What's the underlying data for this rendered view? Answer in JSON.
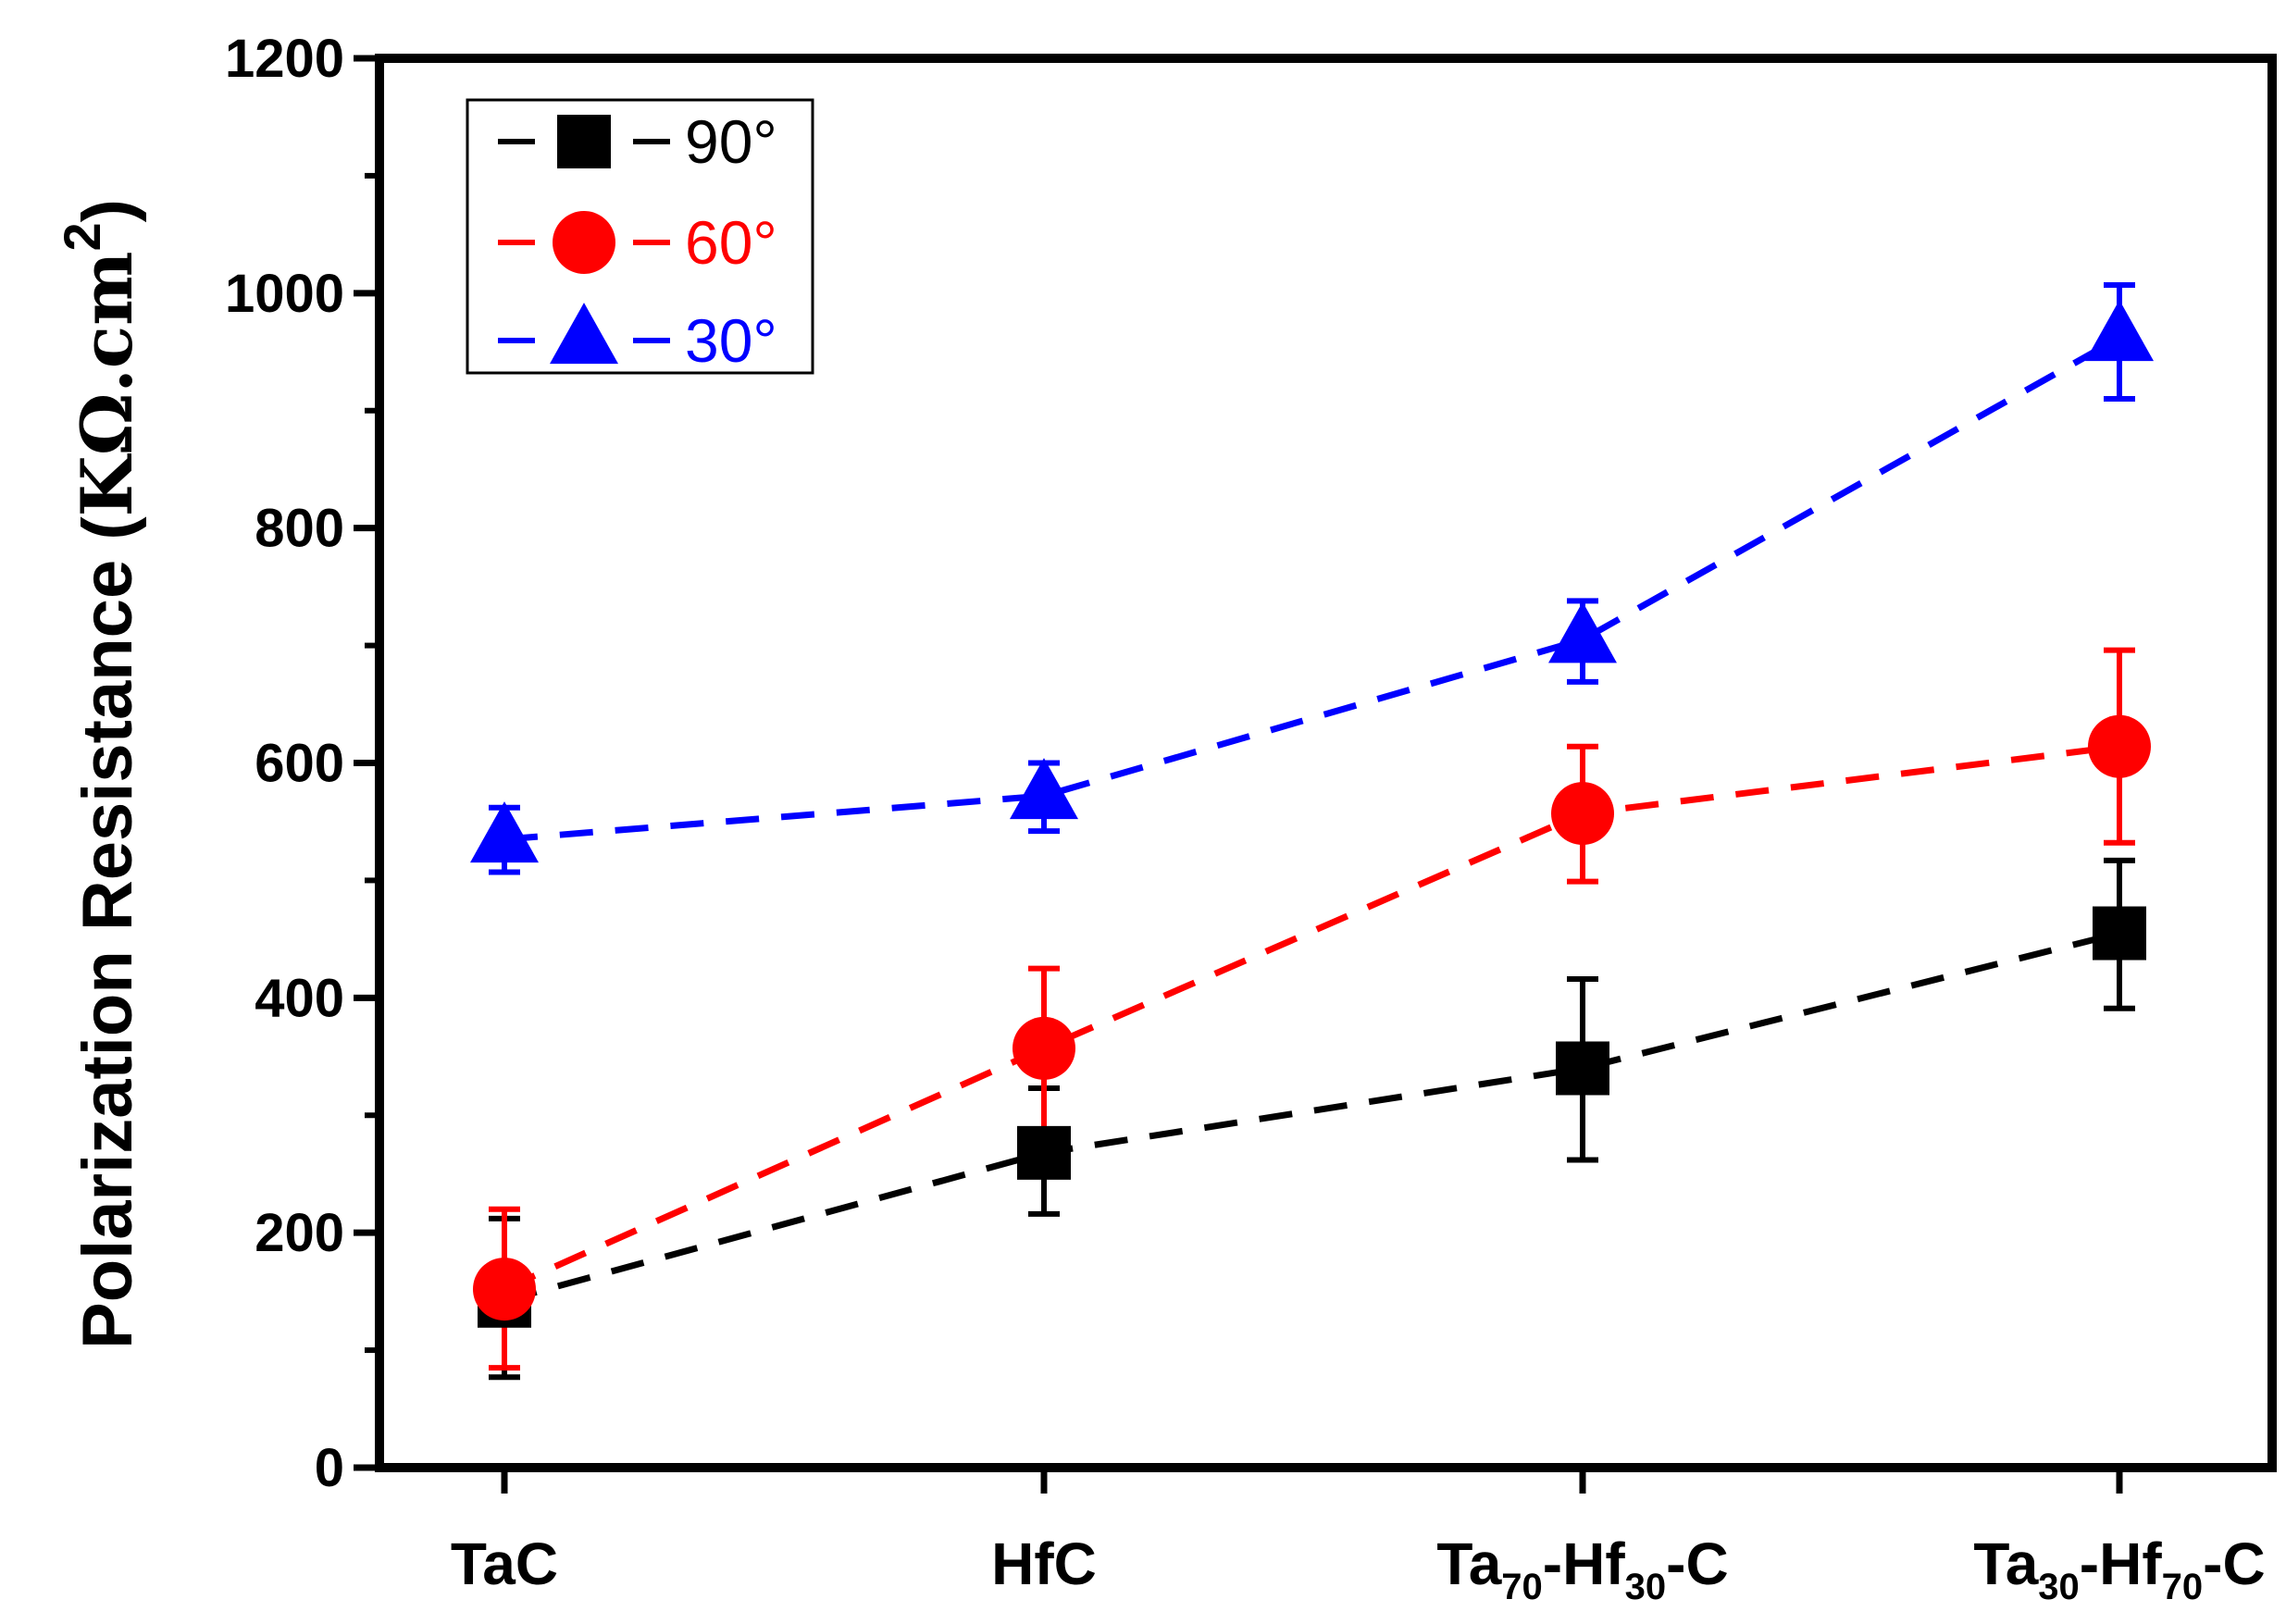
{
  "chart_data": {
    "type": "line",
    "title": "",
    "xlabel": "",
    "ylabel": {
      "main": "Polarization Resistance (",
      "unit": "KΩ.cm",
      "superscript": "2",
      "close": ")"
    },
    "ylim": [
      0,
      1200
    ],
    "yticks": [
      0,
      200,
      400,
      600,
      800,
      1000,
      1200
    ],
    "categories": [
      {
        "parts": [
          {
            "t": "TaC",
            "sub": false
          }
        ]
      },
      {
        "parts": [
          {
            "t": "HfC",
            "sub": false
          }
        ]
      },
      {
        "parts": [
          {
            "t": "Ta",
            "sub": false
          },
          {
            "t": "70",
            "sub": true
          },
          {
            "t": "-Hf",
            "sub": false
          },
          {
            "t": "30",
            "sub": true
          },
          {
            "t": "-C",
            "sub": false
          }
        ]
      },
      {
        "parts": [
          {
            "t": "Ta",
            "sub": false
          },
          {
            "t": "30",
            "sub": true
          },
          {
            "t": "-Hf",
            "sub": false
          },
          {
            "t": "70",
            "sub": true
          },
          {
            "t": "-C",
            "sub": false
          }
        ]
      }
    ],
    "series": [
      {
        "name": "90°",
        "color": "#000000",
        "marker": "square",
        "values": [
          142,
          268,
          340,
          455
        ],
        "error_low": [
          65,
          52,
          78,
          64
        ],
        "error_high": [
          70,
          55,
          76,
          62
        ]
      },
      {
        "name": "60°",
        "color": "#ff0000",
        "marker": "circle",
        "values": [
          152,
          357,
          557,
          614
        ],
        "error_low": [
          67,
          69,
          58,
          82
        ],
        "error_high": [
          68,
          68,
          57,
          82
        ]
      },
      {
        "name": "30°",
        "color": "#0000ff",
        "marker": "triangle",
        "values": [
          535,
          572,
          705,
          962
        ],
        "error_low": [
          28,
          30,
          36,
          52
        ],
        "error_high": [
          27,
          28,
          33,
          45
        ]
      }
    ],
    "legend_position": "top-left"
  }
}
